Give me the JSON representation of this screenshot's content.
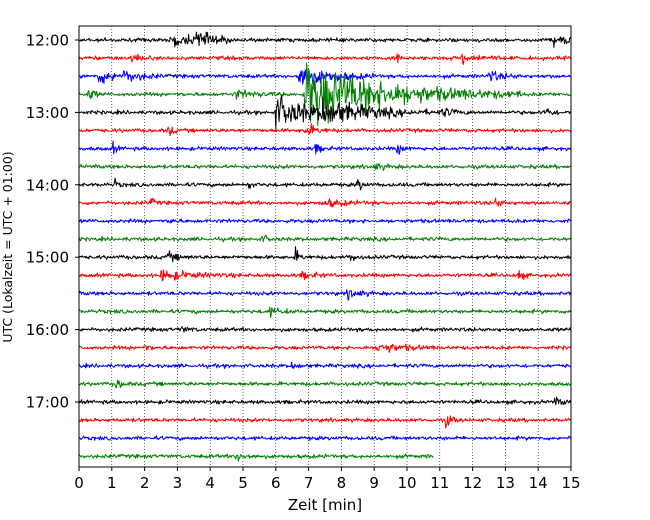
{
  "chart_data": {
    "type": "line",
    "title": "",
    "xlabel": "Zeit  [min]",
    "ylabel": "UTC (Lokalzeit = UTC + 01:00)",
    "xlim": [
      0,
      15
    ],
    "x_ticks": [
      0,
      1,
      2,
      3,
      4,
      5,
      6,
      7,
      8,
      9,
      10,
      11,
      12,
      13,
      14,
      15
    ],
    "x_tick_labels": [
      "0",
      "1",
      "2",
      "3",
      "4",
      "5",
      "6",
      "7",
      "8",
      "9",
      "10",
      "11",
      "12",
      "13",
      "14",
      "15"
    ],
    "y_tick_labels": [
      "12:00",
      "13:00",
      "14:00",
      "15:00",
      "16:00",
      "17:00"
    ],
    "grid": "vertical-dotted",
    "line_interval_minutes": 15,
    "color_cycle": [
      "#000000",
      "#ff0000",
      "#0000ff",
      "#008000"
    ],
    "traces": [
      {
        "start": "12:00",
        "end_minute": 15,
        "events": [
          {
            "t": 2.8,
            "amp": 0.6,
            "dur": 0.7
          },
          {
            "t": 3.6,
            "amp": 0.9,
            "dur": 0.4
          },
          {
            "t": 14.5,
            "amp": 0.7,
            "dur": 0.15
          },
          {
            "t": 14.8,
            "amp": 0.6,
            "dur": 0.1
          }
        ]
      },
      {
        "start": "12:15",
        "end_minute": 15,
        "events": [
          {
            "t": 1.6,
            "amp": 0.6,
            "dur": 0.2
          },
          {
            "t": 9.7,
            "amp": 0.5,
            "dur": 0.1
          },
          {
            "t": 11.7,
            "amp": 0.6,
            "dur": 0.4
          }
        ]
      },
      {
        "start": "12:30",
        "end_minute": 15,
        "events": [
          {
            "t": 0.6,
            "amp": 0.7,
            "dur": 0.6
          },
          {
            "t": 1.4,
            "amp": 0.5,
            "dur": 0.4
          },
          {
            "t": 6.7,
            "amp": 1.3,
            "dur": 0.8
          },
          {
            "t": 12.5,
            "amp": 0.5,
            "dur": 0.4
          }
        ]
      },
      {
        "start": "12:45",
        "end_minute": 15,
        "events": [
          {
            "t": 0.3,
            "amp": 0.6,
            "dur": 0.15
          },
          {
            "t": 6.9,
            "amp": 3.5,
            "dur": 2.2
          },
          {
            "t": 4.8,
            "amp": 0.4,
            "dur": 0.5
          }
        ]
      },
      {
        "start": "13:00",
        "end_minute": 15,
        "events": [
          {
            "t": 6.0,
            "amp": 1.6,
            "dur": 1.2
          },
          {
            "t": 7.4,
            "amp": 0.9,
            "dur": 1.5
          },
          {
            "t": 11.1,
            "amp": 0.4,
            "dur": 0.2
          },
          {
            "t": 14.2,
            "amp": 0.5,
            "dur": 0.2
          }
        ]
      },
      {
        "start": "13:15",
        "end_minute": 15,
        "events": [
          {
            "t": 2.75,
            "amp": 0.6,
            "dur": 0.1
          },
          {
            "t": 6.9,
            "amp": 0.6,
            "dur": 0.3
          }
        ]
      },
      {
        "start": "13:30",
        "end_minute": 15,
        "events": [
          {
            "t": 1.05,
            "amp": 0.5,
            "dur": 0.1
          },
          {
            "t": 7.2,
            "amp": 0.5,
            "dur": 0.15
          },
          {
            "t": 9.7,
            "amp": 0.5,
            "dur": 0.15
          }
        ]
      },
      {
        "start": "13:45",
        "end_minute": 15,
        "events": [
          {
            "t": 9.0,
            "amp": 0.3,
            "dur": 0.3
          }
        ]
      },
      {
        "start": "14:00",
        "end_minute": 15,
        "events": [
          {
            "t": 1.1,
            "amp": 0.4,
            "dur": 0.1
          },
          {
            "t": 5.2,
            "amp": 0.4,
            "dur": 0.1
          },
          {
            "t": 8.5,
            "amp": 0.8,
            "dur": 0.1
          }
        ]
      },
      {
        "start": "14:15",
        "end_minute": 15,
        "events": [
          {
            "t": 2.2,
            "amp": 0.4,
            "dur": 0.1
          },
          {
            "t": 7.5,
            "amp": 0.4,
            "dur": 0.5
          },
          {
            "t": 12.7,
            "amp": 0.4,
            "dur": 0.2
          }
        ]
      },
      {
        "start": "14:30",
        "end_minute": 15,
        "events": [
          {
            "t": 2.8,
            "amp": 0.5,
            "dur": 0.1
          }
        ]
      },
      {
        "start": "14:45",
        "end_minute": 15,
        "events": [
          {
            "t": 5.6,
            "amp": 0.3,
            "dur": 0.2
          }
        ]
      },
      {
        "start": "15:00",
        "end_minute": 15,
        "events": [
          {
            "t": 2.7,
            "amp": 0.4,
            "dur": 0.3
          },
          {
            "t": 6.6,
            "amp": 0.6,
            "dur": 0.15
          },
          {
            "t": 8.3,
            "amp": 0.7,
            "dur": 0.1
          }
        ]
      },
      {
        "start": "15:15",
        "end_minute": 15,
        "events": [
          {
            "t": 2.5,
            "amp": 0.5,
            "dur": 0.8
          },
          {
            "t": 6.8,
            "amp": 0.3,
            "dur": 0.3
          },
          {
            "t": 13.4,
            "amp": 0.7,
            "dur": 0.1
          }
        ]
      },
      {
        "start": "15:30",
        "end_minute": 15,
        "events": [
          {
            "t": 8.2,
            "amp": 0.5,
            "dur": 0.3
          }
        ]
      },
      {
        "start": "15:45",
        "end_minute": 15,
        "events": [
          {
            "t": 5.8,
            "amp": 0.4,
            "dur": 0.3
          }
        ]
      },
      {
        "start": "16:00",
        "end_minute": 15,
        "events": [
          {
            "t": 3.1,
            "amp": 0.3,
            "dur": 0.2
          }
        ]
      },
      {
        "start": "16:15",
        "end_minute": 15,
        "events": [
          {
            "t": 9.1,
            "amp": 0.5,
            "dur": 0.7
          },
          {
            "t": 2.0,
            "amp": 0.3,
            "dur": 0.2
          }
        ]
      },
      {
        "start": "16:30",
        "end_minute": 15,
        "events": [
          {
            "t": 6.5,
            "amp": 0.3,
            "dur": 0.2
          }
        ]
      },
      {
        "start": "16:45",
        "end_minute": 15,
        "events": [
          {
            "t": 1.15,
            "amp": 0.5,
            "dur": 0.15
          }
        ]
      },
      {
        "start": "17:00",
        "end_minute": 15,
        "events": [
          {
            "t": 14.5,
            "amp": 0.3,
            "dur": 0.3
          }
        ]
      },
      {
        "start": "17:15",
        "end_minute": 15,
        "events": [
          {
            "t": 11.2,
            "amp": 0.7,
            "dur": 0.15
          }
        ]
      },
      {
        "start": "17:30",
        "end_minute": 15,
        "events": []
      },
      {
        "start": "17:45",
        "end_minute": 10.8,
        "events": [
          {
            "t": 4.8,
            "amp": 0.4,
            "dur": 0.3
          }
        ]
      }
    ]
  }
}
